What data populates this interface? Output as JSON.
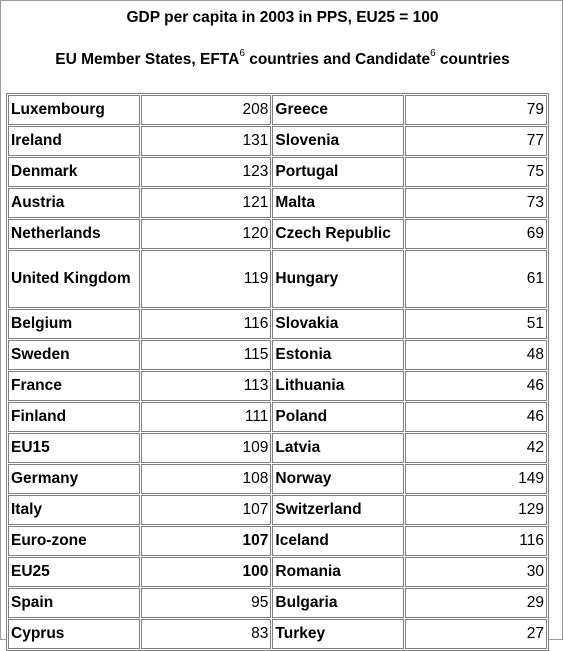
{
  "title": "GDP per capita in 2003 in PPS, EU25 = 100",
  "subtitle": {
    "part1": "EU Member States, EFTA",
    "sup1": "6",
    "part2": " countries and Candidate",
    "sup2": "6",
    "part3": " countries"
  },
  "rows": [
    {
      "left_name": "Luxembourg",
      "left_value": "208",
      "right_name": "Greece",
      "right_value": "79"
    },
    {
      "left_name": "Ireland",
      "left_value": "131",
      "right_name": "Slovenia",
      "right_value": "77"
    },
    {
      "left_name": "Denmark",
      "left_value": "123",
      "right_name": "Portugal",
      "right_value": "75"
    },
    {
      "left_name": "Austria",
      "left_value": "121",
      "right_name": "Malta",
      "right_value": "73"
    },
    {
      "left_name": "Netherlands",
      "left_value": "120",
      "right_name": "Czech Republic",
      "right_value": "69"
    },
    {
      "left_name": "United Kingdom",
      "left_value": "119",
      "right_name": "Hungary",
      "right_value": "61"
    },
    {
      "left_name": "Belgium",
      "left_value": "116",
      "right_name": "Slovakia",
      "right_value": "51"
    },
    {
      "left_name": "Sweden",
      "left_value": "115",
      "right_name": "Estonia",
      "right_value": "48"
    },
    {
      "left_name": "France",
      "left_value": "113",
      "right_name": "Lithuania",
      "right_value": "46"
    },
    {
      "left_name": "Finland",
      "left_value": "111",
      "right_name": "Poland",
      "right_value": "46"
    },
    {
      "left_name": "EU15",
      "left_value": "109",
      "right_name": "Latvia",
      "right_value": "42"
    },
    {
      "left_name": "Germany",
      "left_value": "108",
      "right_name": "Norway",
      "right_value": "149"
    },
    {
      "left_name": "Italy",
      "left_value": "107",
      "right_name": "Switzerland",
      "right_value": "129"
    },
    {
      "left_name": "Euro-zone",
      "left_value": "107",
      "right_name": "Iceland",
      "right_value": "116"
    },
    {
      "left_name": "EU25",
      "left_value": "100",
      "right_name": "Romania",
      "right_value": "30"
    },
    {
      "left_name": "Spain",
      "left_value": "95",
      "right_name": "Bulgaria",
      "right_value": "29"
    },
    {
      "left_name": "Cyprus",
      "left_value": "83",
      "right_name": "Turkey",
      "right_value": "27"
    }
  ]
}
